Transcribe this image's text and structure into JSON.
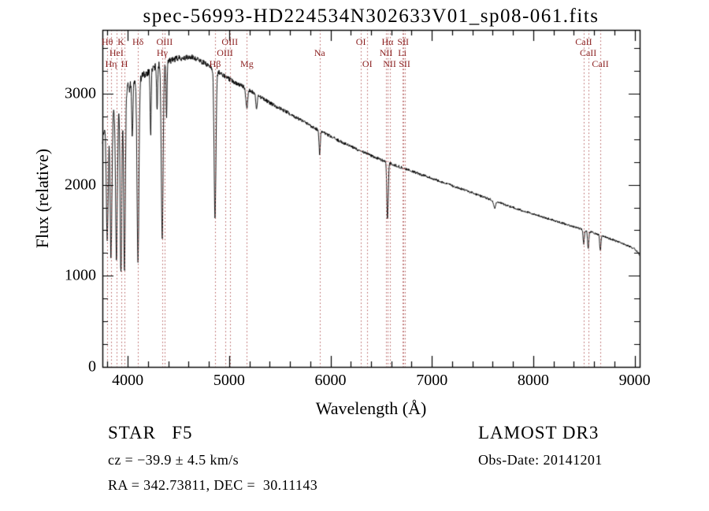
{
  "chart_data": {
    "type": "line",
    "title": "spec-56993-HD224534N302633V01_sp08-061.fits",
    "xlabel": "Wavelength (Å)",
    "ylabel": "Flux (relative)",
    "xlim": [
      3750,
      9050
    ],
    "ylim": [
      0,
      3700
    ],
    "x_ticks": [
      4000,
      5000,
      6000,
      7000,
      8000,
      9000
    ],
    "x_minor_step": 200,
    "y_ticks": [
      0,
      1000,
      2000,
      3000
    ],
    "y_minor_step": 250,
    "grid": false,
    "legend": "none",
    "spectrum_color": "#000000",
    "marker_line_color": "#b25a5a",
    "marker_label_color": "#8b1f1f",
    "seed": 1337,
    "continuum": [
      [
        3750,
        2500
      ],
      [
        3800,
        2760
      ],
      [
        3900,
        2950
      ],
      [
        4000,
        3060
      ],
      [
        4150,
        3200
      ],
      [
        4300,
        3320
      ],
      [
        4500,
        3390
      ],
      [
        4650,
        3400
      ],
      [
        4800,
        3310
      ],
      [
        5000,
        3160
      ],
      [
        5200,
        3040
      ],
      [
        5400,
        2900
      ],
      [
        5600,
        2780
      ],
      [
        5800,
        2650
      ],
      [
        6000,
        2530
      ],
      [
        6200,
        2420
      ],
      [
        6400,
        2320
      ],
      [
        6600,
        2230
      ],
      [
        6800,
        2150
      ],
      [
        7000,
        2070
      ],
      [
        7200,
        1990
      ],
      [
        7400,
        1910
      ],
      [
        7600,
        1830
      ],
      [
        7800,
        1750
      ],
      [
        8000,
        1680
      ],
      [
        8200,
        1610
      ],
      [
        8400,
        1540
      ],
      [
        8600,
        1470
      ],
      [
        8800,
        1390
      ],
      [
        9000,
        1300
      ],
      [
        9050,
        1230
      ]
    ],
    "absorption_features": [
      {
        "wl": 3798,
        "depth": 0.5,
        "sigma": 9
      },
      {
        "wl": 3835,
        "depth": 0.56,
        "sigma": 9
      },
      {
        "wl": 3889,
        "depth": 0.6,
        "sigma": 9
      },
      {
        "wl": 3933,
        "depth": 0.66,
        "sigma": 8
      },
      {
        "wl": 3968,
        "depth": 0.66,
        "sigma": 8
      },
      {
        "wl": 4045,
        "depth": 0.2,
        "sigma": 5
      },
      {
        "wl": 4101,
        "depth": 0.64,
        "sigma": 9
      },
      {
        "wl": 4226,
        "depth": 0.22,
        "sigma": 5
      },
      {
        "wl": 4290,
        "depth": 0.15,
        "sigma": 5
      },
      {
        "wl": 4340,
        "depth": 0.58,
        "sigma": 9
      },
      {
        "wl": 4383,
        "depth": 0.18,
        "sigma": 5
      },
      {
        "wl": 4861,
        "depth": 0.5,
        "sigma": 9
      },
      {
        "wl": 5175,
        "depth": 0.07,
        "sigma": 9
      },
      {
        "wl": 5270,
        "depth": 0.06,
        "sigma": 6
      },
      {
        "wl": 5893,
        "depth": 0.1,
        "sigma": 6
      },
      {
        "wl": 6563,
        "depth": 0.28,
        "sigma": 7
      },
      {
        "wl": 7620,
        "depth": 0.04,
        "sigma": 10
      },
      {
        "wl": 8498,
        "depth": 0.1,
        "sigma": 6
      },
      {
        "wl": 8542,
        "depth": 0.13,
        "sigma": 6
      },
      {
        "wl": 8662,
        "depth": 0.12,
        "sigma": 6
      }
    ],
    "noise_profile": [
      [
        3750,
        75
      ],
      [
        3950,
        70
      ],
      [
        4200,
        45
      ],
      [
        4600,
        30
      ],
      [
        5000,
        25
      ],
      [
        5500,
        20
      ],
      [
        6000,
        18
      ],
      [
        6500,
        16
      ],
      [
        7000,
        14
      ],
      [
        8000,
        12
      ],
      [
        9050,
        12
      ]
    ],
    "spectral_line_markers": [
      {
        "wl": 3798,
        "label": "Hθ",
        "row": 1
      },
      {
        "wl": 3835,
        "label": "Hη",
        "row": 3
      },
      {
        "wl": 3889,
        "label": "HeI",
        "row": 2
      },
      {
        "wl": 3933,
        "label": "K",
        "row": 1
      },
      {
        "wl": 3968,
        "label": "H",
        "row": 3
      },
      {
        "wl": 4101,
        "label": "Hδ",
        "row": 1
      },
      {
        "wl": 4340,
        "label": "Hγ",
        "row": 2
      },
      {
        "wl": 4363,
        "label": "OIII",
        "row": 1
      },
      {
        "wl": 4861,
        "label": "Hβ",
        "row": 3
      },
      {
        "wl": 4959,
        "label": "OIII",
        "row": 2
      },
      {
        "wl": 5007,
        "label": "OIII",
        "row": 1
      },
      {
        "wl": 5175,
        "label": "Mg",
        "row": 3
      },
      {
        "wl": 5893,
        "label": "Na",
        "row": 2
      },
      {
        "wl": 6300,
        "label": "OI",
        "row": 1
      },
      {
        "wl": 6363,
        "label": "OI",
        "row": 3
      },
      {
        "wl": 6548,
        "label": "NII",
        "row": 2
      },
      {
        "wl": 6563,
        "label": "Hα",
        "row": 1
      },
      {
        "wl": 6583,
        "label": "NII",
        "row": 3
      },
      {
        "wl": 6708,
        "label": "Li",
        "row": 2
      },
      {
        "wl": 6716,
        "label": "SII",
        "row": 1
      },
      {
        "wl": 6731,
        "label": "SII",
        "row": 3
      },
      {
        "wl": 8498,
        "label": "CaII",
        "row": 1
      },
      {
        "wl": 8542,
        "label": "CaII",
        "row": 2
      },
      {
        "wl": 8662,
        "label": "CaII",
        "row": 3
      }
    ]
  },
  "footer": {
    "classification": "STAR   F5",
    "survey": "LAMOST DR3",
    "velocity": "cz = −39.9 ± 4.5 km/s",
    "obs_date": "Obs-Date: 20141201",
    "coordinates": "RA = 342.73811, DEC =  30.11143"
  }
}
